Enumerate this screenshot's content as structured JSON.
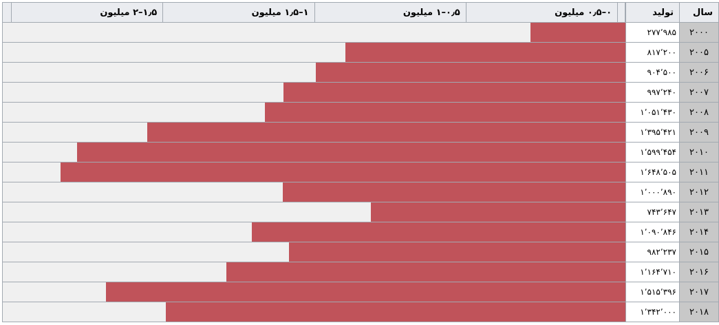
{
  "header": {
    "year": "سال",
    "production": "تولید",
    "ranges": [
      "۰–۰٫۵ میلیون",
      "۰٫۵–۱ میلیون",
      "۱–۱٫۵ میلیون",
      "۱٫۵–۲ میلیون"
    ]
  },
  "rows": [
    {
      "year": "۲۰۰۰",
      "production": "۲۷۷٬۹۸۵"
    },
    {
      "year": "۲۰۰۵",
      "production": "۸۱۷٬۲۰۰"
    },
    {
      "year": "۲۰۰۶",
      "production": "۹۰۴٬۵۰۰"
    },
    {
      "year": "۲۰۰۷",
      "production": "۹۹۷٬۲۴۰"
    },
    {
      "year": "۲۰۰۸",
      "production": "۱٬۰۵۱٬۴۳۰"
    },
    {
      "year": "۲۰۰۹",
      "production": "۱٬۳۹۵٬۴۲۱"
    },
    {
      "year": "۲۰۱۰",
      "production": "۱٬۵۹۹٬۴۵۴"
    },
    {
      "year": "۲۰۱۱",
      "production": "۱٬۶۴۸٬۵۰۵"
    },
    {
      "year": "۲۰۱۲",
      "production": "۱٬۰۰۰٬۸۹۰"
    },
    {
      "year": "۲۰۱۳",
      "production": "۷۴۳٬۶۴۷"
    },
    {
      "year": "۲۰۱۴",
      "production": "۱٬۰۹۰٬۸۴۶"
    },
    {
      "year": "۲۰۱۵",
      "production": "۹۸۲٬۲۳۷"
    },
    {
      "year": "۲۰۱۶",
      "production": "۱٬۱۶۴٬۷۱۰"
    },
    {
      "year": "۲۰۱۷",
      "production": "۱٬۵۱۵٬۳۹۶"
    },
    {
      "year": "۲۰۱۸",
      "production": "۱٬۳۴۲٬۰۰۰"
    }
  ]
}
